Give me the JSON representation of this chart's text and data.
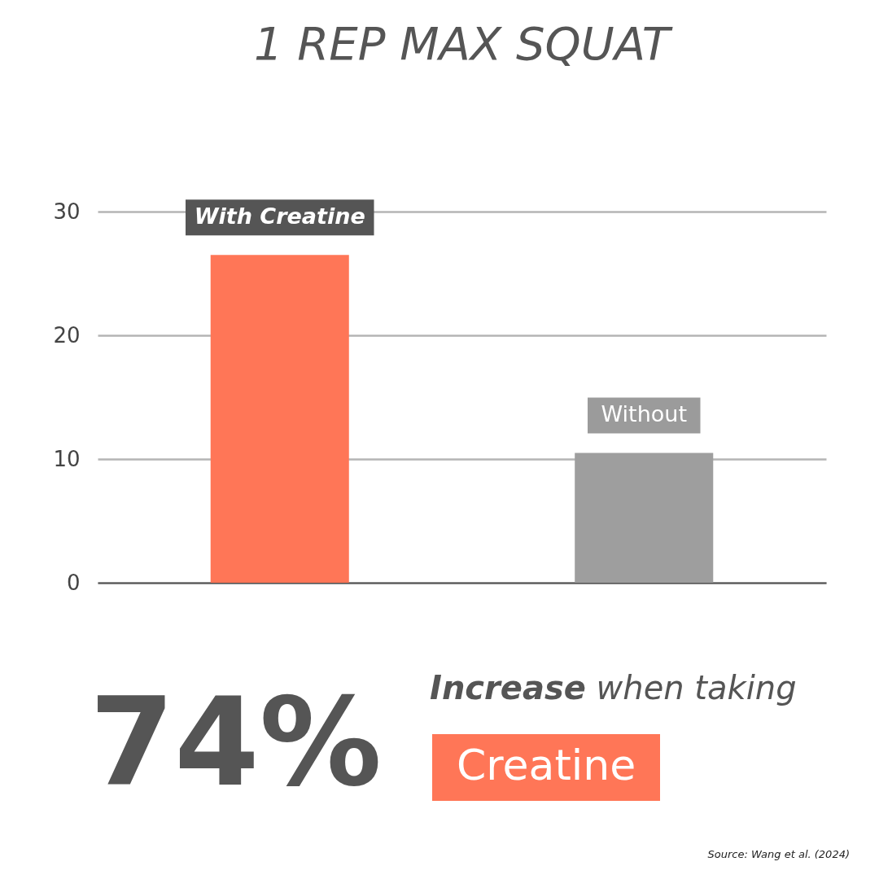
{
  "chart_data": {
    "type": "bar",
    "title": "1 REP MAX SQUAT",
    "categories": [
      "With Creatine",
      "Without"
    ],
    "values": [
      26.5,
      10.5
    ],
    "colors": [
      "#ff7657",
      "#9e9e9e"
    ],
    "ylim": [
      0,
      30
    ],
    "yticks": [
      0,
      10,
      20,
      30
    ],
    "grid": "y",
    "tick_labels": "y",
    "annotations": [
      "74%",
      "Increase when taking",
      "Creatine",
      "Source: Wang et al. (2024)"
    ]
  }
}
